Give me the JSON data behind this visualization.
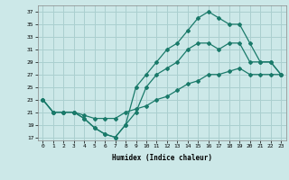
{
  "xlabel": "Humidex (Indice chaleur)",
  "bg_color": "#cce8e8",
  "grid_color": "#aacfcf",
  "line_color": "#1a7a6a",
  "xlim": [
    -0.5,
    23.5
  ],
  "ylim": [
    16.5,
    38
  ],
  "xticks": [
    0,
    1,
    2,
    3,
    4,
    5,
    6,
    7,
    8,
    9,
    10,
    11,
    12,
    13,
    14,
    15,
    16,
    17,
    18,
    19,
    20,
    21,
    22,
    23
  ],
  "yticks": [
    17,
    19,
    21,
    23,
    25,
    27,
    29,
    31,
    33,
    35,
    37
  ],
  "line1_x": [
    0,
    1,
    2,
    3,
    4,
    5,
    6,
    7,
    8,
    9,
    10,
    11,
    12,
    13,
    14,
    15,
    16,
    17,
    18,
    19,
    20,
    21,
    22,
    23
  ],
  "line1_y": [
    23,
    21,
    21,
    21,
    20.5,
    20,
    20,
    20,
    21,
    21.5,
    22,
    23,
    23.5,
    24.5,
    25.5,
    26,
    27,
    27,
    27.5,
    28,
    27,
    27,
    27,
    27
  ],
  "line2_x": [
    0,
    1,
    2,
    3,
    4,
    5,
    6,
    7,
    8,
    9,
    10,
    11,
    12,
    13,
    14,
    15,
    16,
    17,
    18,
    19,
    20,
    21,
    22,
    23
  ],
  "line2_y": [
    23,
    21,
    21,
    21,
    20,
    18.5,
    17.5,
    17,
    19,
    21,
    25,
    27,
    28,
    29,
    31,
    32,
    32,
    31,
    32,
    32,
    29,
    29,
    29,
    27
  ],
  "line3_x": [
    0,
    1,
    2,
    3,
    4,
    5,
    6,
    7,
    8,
    9,
    10,
    11,
    12,
    13,
    14,
    15,
    16,
    17,
    18,
    19,
    20,
    21,
    22,
    23
  ],
  "line3_y": [
    23,
    21,
    21,
    21,
    20,
    18.5,
    17.5,
    17,
    19,
    25,
    27,
    29,
    31,
    32,
    34,
    36,
    37,
    36,
    35,
    35,
    32,
    29,
    29,
    27
  ]
}
